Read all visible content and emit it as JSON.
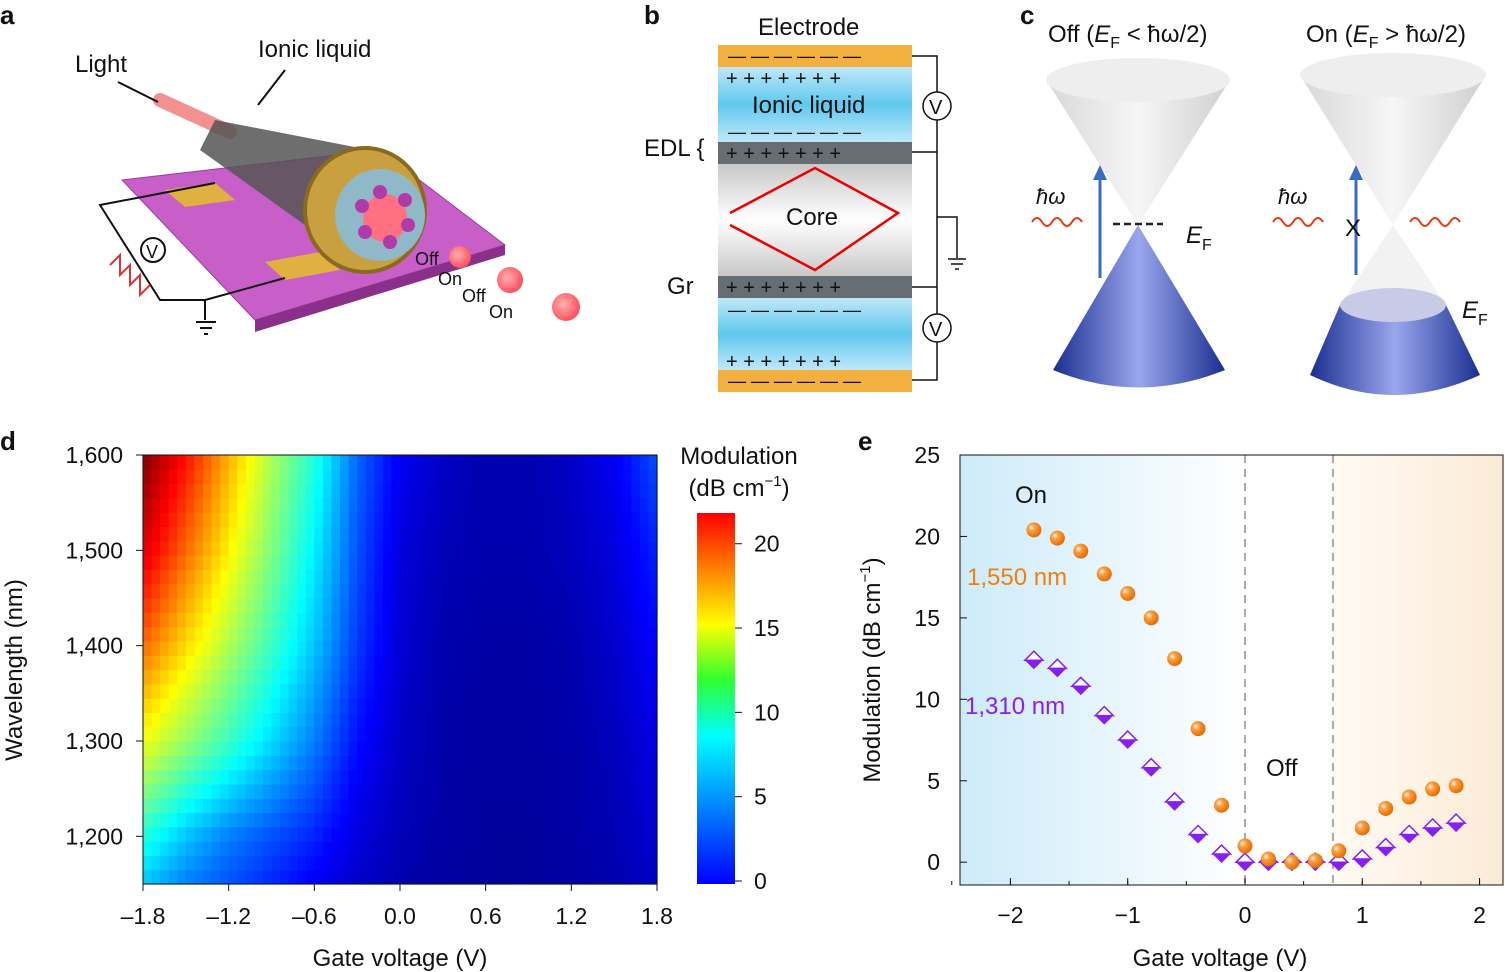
{
  "panels": {
    "a": {
      "letter": "a",
      "light_label": "Light",
      "ionic_label": "Ionic liquid",
      "voltmeter": "V",
      "states": [
        "Off",
        "On",
        "Off",
        "On"
      ]
    },
    "b": {
      "letter": "b",
      "electrode": "Electrode",
      "ionic_liquid": "Ionic liquid",
      "edl": "EDL {",
      "core": "Core",
      "gr": "Gr",
      "voltmeter": "V",
      "plus_row": "+  +  +  +  +  +  +",
      "minus_row": "—  —  —  —  —  —"
    },
    "c": {
      "letter": "c",
      "off_title": {
        "pre": "Off (",
        "e": "E",
        "sub": "F",
        "post": " < ħω/2)"
      },
      "on_title": {
        "pre": "On (",
        "e": "E",
        "sub": "F",
        "post": " > ħω/2)"
      },
      "photon": "ħω",
      "ef": {
        "e": "E",
        "sub": "F"
      },
      "blocked_mark": "X"
    },
    "d": {
      "letter": "d"
    },
    "e": {
      "letter": "e"
    }
  },
  "chart_data": [
    {
      "type": "heatmap",
      "xlabel": "Gate voltage (V)",
      "ylabel": "Wavelength (nm)",
      "xlim": [
        -1.8,
        1.8
      ],
      "ylim": [
        1150,
        1600
      ],
      "xticks": [
        "–1.8",
        "–1.2",
        "–0.6",
        "0.0",
        "0.6",
        "1.2",
        "1.8"
      ],
      "xtick_values": [
        -1.8,
        -1.2,
        -0.6,
        0.0,
        0.6,
        1.2,
        1.8
      ],
      "yticks": [
        "1,600",
        "1,500",
        "1,400",
        "1,300",
        "1,200"
      ],
      "ytick_values": [
        1600,
        1500,
        1400,
        1300,
        1200
      ],
      "colorbar": {
        "title_line1": "Modulation",
        "title_line2_pre": "(dB cm",
        "title_line2_sup": "−1",
        "title_line2_post": ")",
        "range": [
          0,
          22
        ],
        "ticks": [
          "0",
          "5",
          "10",
          "15",
          "20"
        ],
        "tick_values": [
          0,
          5,
          10,
          15,
          20
        ],
        "colormap": "jet"
      },
      "x": [
        -1.8,
        -1.5,
        -1.2,
        -0.9,
        -0.6,
        -0.3,
        0.0,
        0.3,
        0.6,
        0.9,
        1.2,
        1.5,
        1.8
      ],
      "y": [
        1600,
        1500,
        1400,
        1300,
        1200,
        1150
      ],
      "z": [
        [
          22,
          19,
          15.5,
          12,
          9,
          5,
          2.5,
          1.5,
          1,
          1,
          1.5,
          2.5,
          4.5
        ],
        [
          20,
          17,
          14,
          11,
          8,
          4.5,
          2,
          1.2,
          1,
          1,
          1.3,
          2,
          3.5
        ],
        [
          17,
          14.5,
          12,
          9.5,
          7,
          4,
          1.8,
          1,
          0.8,
          0.8,
          1,
          1.6,
          2.8
        ],
        [
          13.5,
          11.5,
          9.5,
          7.5,
          5.5,
          3,
          1.5,
          0.9,
          0.7,
          0.7,
          0.9,
          1.3,
          2.2
        ],
        [
          9,
          7,
          5.5,
          4.5,
          3.5,
          2,
          1.2,
          0.8,
          0.6,
          0.6,
          0.8,
          1.1,
          1.8
        ],
        [
          7,
          5.5,
          4.5,
          3.5,
          2.5,
          1.6,
          1,
          0.7,
          0.6,
          0.6,
          0.7,
          1,
          1.5
        ]
      ]
    },
    {
      "type": "scatter",
      "xlabel": "Gate voltage (V)",
      "ylabel_pre": "Modulation (dB cm",
      "ylabel_sup": "−1",
      "ylabel_post": ")",
      "xlim": [
        -2.43,
        2.2
      ],
      "ylim": [
        -1.4,
        25
      ],
      "xticks": [
        "−2",
        "−1",
        "0",
        "1",
        "2"
      ],
      "xtick_values": [
        -2,
        -1,
        0,
        1,
        2
      ],
      "yticks": [
        "0",
        "5",
        "10",
        "15",
        "20",
        "25"
      ],
      "ytick_values": [
        0,
        5,
        10,
        15,
        20,
        25
      ],
      "regions": [
        {
          "label": "On",
          "from": -2.43,
          "to": 0,
          "color": "#cfeaf8"
        },
        {
          "label": "Off",
          "from": 0,
          "to": 0.75,
          "color": "#ffffff"
        },
        {
          "label": "",
          "from": 0.75,
          "to": 2.2,
          "color": "#fbeedd"
        }
      ],
      "x": [
        -1.8,
        -1.6,
        -1.4,
        -1.2,
        -1.0,
        -0.8,
        -0.6,
        -0.4,
        -0.2,
        0.0,
        0.2,
        0.4,
        0.6,
        0.8,
        1.0,
        1.2,
        1.4,
        1.6,
        1.8
      ],
      "series": [
        {
          "name": "1,550 nm",
          "color": "#f07f10",
          "marker": "circle",
          "values": [
            20.4,
            19.9,
            19.1,
            17.7,
            16.5,
            15.0,
            12.5,
            8.2,
            3.5,
            1.0,
            0.2,
            0.0,
            0.1,
            0.7,
            2.1,
            3.3,
            4.0,
            4.5,
            4.7
          ]
        },
        {
          "name": "1,310 nm",
          "color": "#8a1ef0",
          "marker": "diamond",
          "values": [
            12.4,
            11.9,
            10.8,
            9.0,
            7.5,
            5.8,
            3.7,
            1.7,
            0.5,
            0.0,
            0.0,
            0.0,
            0.0,
            0.0,
            0.2,
            0.9,
            1.7,
            2.1,
            2.4
          ]
        }
      ]
    }
  ]
}
